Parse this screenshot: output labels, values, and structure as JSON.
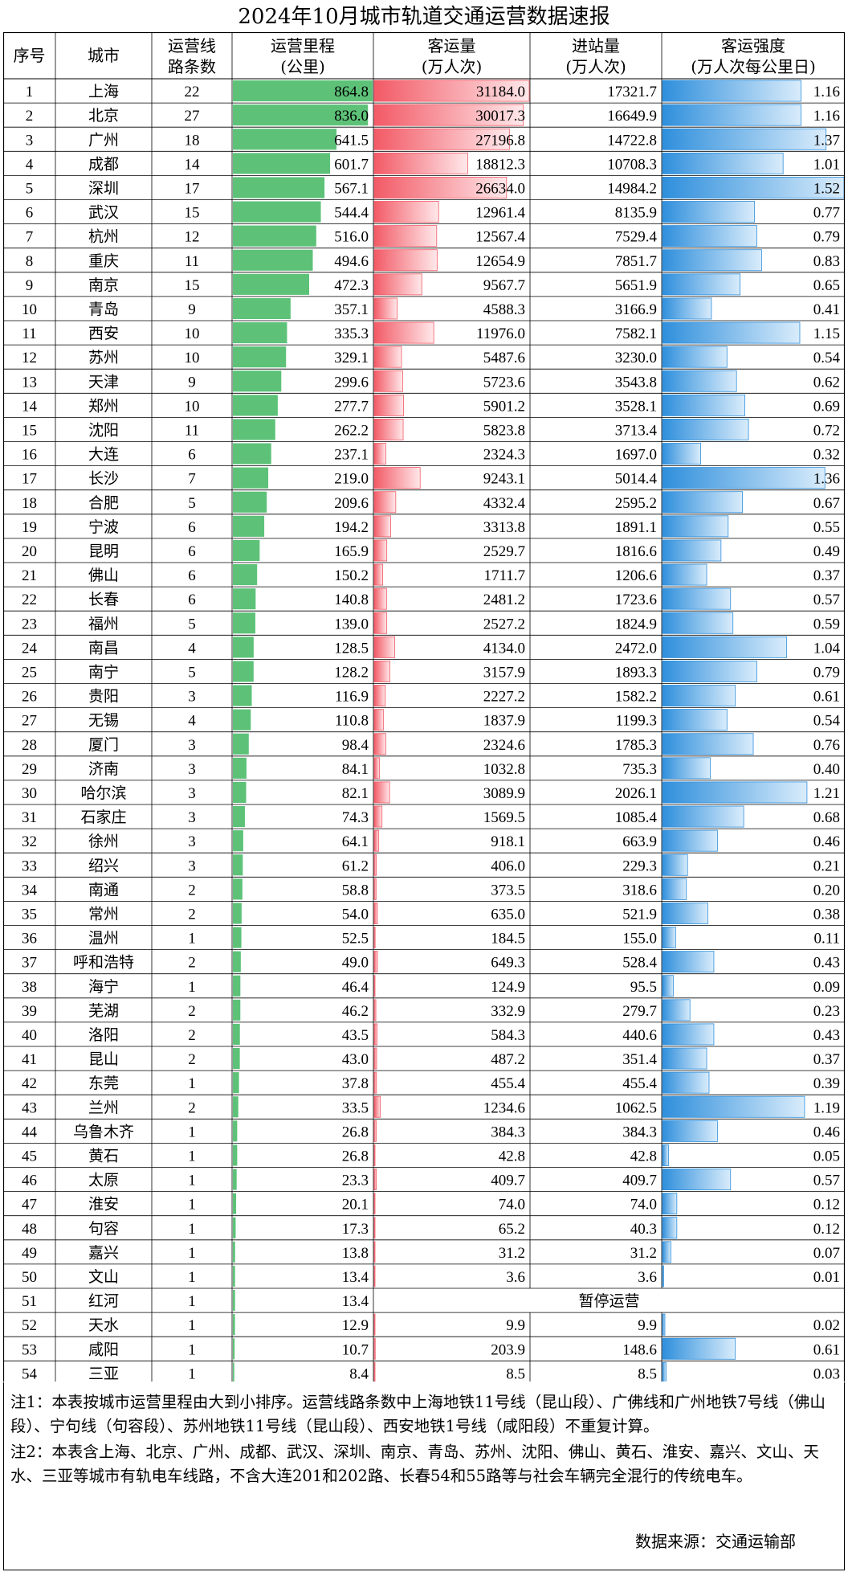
{
  "title": "2024年10月城市轨道交通运营数据速报",
  "headers": {
    "seq": "序号",
    "city": "城市",
    "lines_1": "运营线",
    "lines_2": "路条数",
    "mileage_1": "运营里程",
    "mileage_2": "(公里)",
    "ridership_1": "客运量",
    "ridership_2": "(万人次)",
    "entry_1": "进站量",
    "entry_2": "(万人次)",
    "intensity_1": "客运强度",
    "intensity_2": "(万人次每公里日)"
  },
  "colors": {
    "mileage_bar": "#5dc278",
    "ridership_bar": "#f25a66",
    "intensity_bar": "#2f8fdc",
    "border": "#000000"
  },
  "scales": {
    "mileage_max": 864.8,
    "ridership_max": 31184.0,
    "intensity_max": 1.52
  },
  "suspended_text": "暂停运营",
  "rows": [
    {
      "seq": "1",
      "city": "上海",
      "lines": "22",
      "mileage": "864.8",
      "ridership": "31184.0",
      "entries": "17321.7",
      "intensity": "1.16"
    },
    {
      "seq": "2",
      "city": "北京",
      "lines": "27",
      "mileage": "836.0",
      "ridership": "30017.3",
      "entries": "16649.9",
      "intensity": "1.16"
    },
    {
      "seq": "3",
      "city": "广州",
      "lines": "18",
      "mileage": "641.5",
      "ridership": "27196.8",
      "entries": "14722.8",
      "intensity": "1.37"
    },
    {
      "seq": "4",
      "city": "成都",
      "lines": "14",
      "mileage": "601.7",
      "ridership": "18812.3",
      "entries": "10708.3",
      "intensity": "1.01"
    },
    {
      "seq": "5",
      "city": "深圳",
      "lines": "17",
      "mileage": "567.1",
      "ridership": "26634.0",
      "entries": "14984.2",
      "intensity": "1.52"
    },
    {
      "seq": "6",
      "city": "武汉",
      "lines": "15",
      "mileage": "544.4",
      "ridership": "12961.4",
      "entries": "8135.9",
      "intensity": "0.77"
    },
    {
      "seq": "7",
      "city": "杭州",
      "lines": "12",
      "mileage": "516.0",
      "ridership": "12567.4",
      "entries": "7529.4",
      "intensity": "0.79"
    },
    {
      "seq": "8",
      "city": "重庆",
      "lines": "11",
      "mileage": "494.6",
      "ridership": "12654.9",
      "entries": "7851.7",
      "intensity": "0.83"
    },
    {
      "seq": "9",
      "city": "南京",
      "lines": "15",
      "mileage": "472.3",
      "ridership": "9567.7",
      "entries": "5651.9",
      "intensity": "0.65"
    },
    {
      "seq": "10",
      "city": "青岛",
      "lines": "9",
      "mileage": "357.1",
      "ridership": "4588.3",
      "entries": "3166.9",
      "intensity": "0.41"
    },
    {
      "seq": "11",
      "city": "西安",
      "lines": "10",
      "mileage": "335.3",
      "ridership": "11976.0",
      "entries": "7582.1",
      "intensity": "1.15"
    },
    {
      "seq": "12",
      "city": "苏州",
      "lines": "10",
      "mileage": "329.1",
      "ridership": "5487.6",
      "entries": "3230.0",
      "intensity": "0.54"
    },
    {
      "seq": "13",
      "city": "天津",
      "lines": "9",
      "mileage": "299.6",
      "ridership": "5723.6",
      "entries": "3543.8",
      "intensity": "0.62"
    },
    {
      "seq": "14",
      "city": "郑州",
      "lines": "10",
      "mileage": "277.7",
      "ridership": "5901.2",
      "entries": "3528.1",
      "intensity": "0.69"
    },
    {
      "seq": "15",
      "city": "沈阳",
      "lines": "11",
      "mileage": "262.2",
      "ridership": "5823.8",
      "entries": "3713.4",
      "intensity": "0.72"
    },
    {
      "seq": "16",
      "city": "大连",
      "lines": "6",
      "mileage": "237.1",
      "ridership": "2324.3",
      "entries": "1697.0",
      "intensity": "0.32"
    },
    {
      "seq": "17",
      "city": "长沙",
      "lines": "7",
      "mileage": "219.0",
      "ridership": "9243.1",
      "entries": "5014.4",
      "intensity": "1.36"
    },
    {
      "seq": "18",
      "city": "合肥",
      "lines": "5",
      "mileage": "209.6",
      "ridership": "4332.4",
      "entries": "2595.2",
      "intensity": "0.67"
    },
    {
      "seq": "19",
      "city": "宁波",
      "lines": "6",
      "mileage": "194.2",
      "ridership": "3313.8",
      "entries": "1891.1",
      "intensity": "0.55"
    },
    {
      "seq": "20",
      "city": "昆明",
      "lines": "6",
      "mileage": "165.9",
      "ridership": "2529.7",
      "entries": "1816.6",
      "intensity": "0.49"
    },
    {
      "seq": "21",
      "city": "佛山",
      "lines": "6",
      "mileage": "150.2",
      "ridership": "1711.7",
      "entries": "1206.6",
      "intensity": "0.37"
    },
    {
      "seq": "22",
      "city": "长春",
      "lines": "6",
      "mileage": "140.8",
      "ridership": "2481.2",
      "entries": "1723.6",
      "intensity": "0.57"
    },
    {
      "seq": "23",
      "city": "福州",
      "lines": "5",
      "mileage": "139.0",
      "ridership": "2527.2",
      "entries": "1824.9",
      "intensity": "0.59"
    },
    {
      "seq": "24",
      "city": "南昌",
      "lines": "4",
      "mileage": "128.5",
      "ridership": "4134.0",
      "entries": "2472.0",
      "intensity": "1.04"
    },
    {
      "seq": "25",
      "city": "南宁",
      "lines": "5",
      "mileage": "128.2",
      "ridership": "3157.9",
      "entries": "1893.3",
      "intensity": "0.79"
    },
    {
      "seq": "26",
      "city": "贵阳",
      "lines": "3",
      "mileage": "116.9",
      "ridership": "2227.2",
      "entries": "1582.2",
      "intensity": "0.61"
    },
    {
      "seq": "27",
      "city": "无锡",
      "lines": "4",
      "mileage": "110.8",
      "ridership": "1837.9",
      "entries": "1199.3",
      "intensity": "0.54"
    },
    {
      "seq": "28",
      "city": "厦门",
      "lines": "3",
      "mileage": "98.4",
      "ridership": "2324.6",
      "entries": "1785.3",
      "intensity": "0.76"
    },
    {
      "seq": "29",
      "city": "济南",
      "lines": "3",
      "mileage": "84.1",
      "ridership": "1032.8",
      "entries": "735.3",
      "intensity": "0.40"
    },
    {
      "seq": "30",
      "city": "哈尔滨",
      "lines": "3",
      "mileage": "82.1",
      "ridership": "3089.9",
      "entries": "2026.1",
      "intensity": "1.21"
    },
    {
      "seq": "31",
      "city": "石家庄",
      "lines": "3",
      "mileage": "74.3",
      "ridership": "1569.5",
      "entries": "1085.4",
      "intensity": "0.68"
    },
    {
      "seq": "32",
      "city": "徐州",
      "lines": "3",
      "mileage": "64.1",
      "ridership": "918.1",
      "entries": "663.9",
      "intensity": "0.46"
    },
    {
      "seq": "33",
      "city": "绍兴",
      "lines": "3",
      "mileage": "61.2",
      "ridership": "406.0",
      "entries": "229.3",
      "intensity": "0.21"
    },
    {
      "seq": "34",
      "city": "南通",
      "lines": "2",
      "mileage": "58.8",
      "ridership": "373.5",
      "entries": "318.6",
      "intensity": "0.20"
    },
    {
      "seq": "35",
      "city": "常州",
      "lines": "2",
      "mileage": "54.0",
      "ridership": "635.0",
      "entries": "521.9",
      "intensity": "0.38"
    },
    {
      "seq": "36",
      "city": "温州",
      "lines": "1",
      "mileage": "52.5",
      "ridership": "184.5",
      "entries": "155.0",
      "intensity": "0.11"
    },
    {
      "seq": "37",
      "city": "呼和浩特",
      "lines": "2",
      "mileage": "49.0",
      "ridership": "649.3",
      "entries": "528.4",
      "intensity": "0.43"
    },
    {
      "seq": "38",
      "city": "海宁",
      "lines": "1",
      "mileage": "46.4",
      "ridership": "124.9",
      "entries": "95.5",
      "intensity": "0.09"
    },
    {
      "seq": "39",
      "city": "芜湖",
      "lines": "2",
      "mileage": "46.2",
      "ridership": "332.9",
      "entries": "279.7",
      "intensity": "0.23"
    },
    {
      "seq": "40",
      "city": "洛阳",
      "lines": "2",
      "mileage": "43.5",
      "ridership": "584.3",
      "entries": "440.6",
      "intensity": "0.43"
    },
    {
      "seq": "41",
      "city": "昆山",
      "lines": "2",
      "mileage": "43.0",
      "ridership": "487.2",
      "entries": "351.4",
      "intensity": "0.37"
    },
    {
      "seq": "42",
      "city": "东莞",
      "lines": "1",
      "mileage": "37.8",
      "ridership": "455.4",
      "entries": "455.4",
      "intensity": "0.39"
    },
    {
      "seq": "43",
      "city": "兰州",
      "lines": "2",
      "mileage": "33.5",
      "ridership": "1234.6",
      "entries": "1062.5",
      "intensity": "1.19"
    },
    {
      "seq": "44",
      "city": "乌鲁木齐",
      "lines": "1",
      "mileage": "26.8",
      "ridership": "384.3",
      "entries": "384.3",
      "intensity": "0.46"
    },
    {
      "seq": "45",
      "city": "黄石",
      "lines": "1",
      "mileage": "26.8",
      "ridership": "42.8",
      "entries": "42.8",
      "intensity": "0.05"
    },
    {
      "seq": "46",
      "city": "太原",
      "lines": "1",
      "mileage": "23.3",
      "ridership": "409.7",
      "entries": "409.7",
      "intensity": "0.57"
    },
    {
      "seq": "47",
      "city": "淮安",
      "lines": "1",
      "mileage": "20.1",
      "ridership": "74.0",
      "entries": "74.0",
      "intensity": "0.12"
    },
    {
      "seq": "48",
      "city": "句容",
      "lines": "1",
      "mileage": "17.3",
      "ridership": "65.2",
      "entries": "40.3",
      "intensity": "0.12"
    },
    {
      "seq": "49",
      "city": "嘉兴",
      "lines": "1",
      "mileage": "13.8",
      "ridership": "31.2",
      "entries": "31.2",
      "intensity": "0.07"
    },
    {
      "seq": "50",
      "city": "文山",
      "lines": "1",
      "mileage": "13.4",
      "ridership": "3.6",
      "entries": "3.6",
      "intensity": "0.01"
    },
    {
      "seq": "51",
      "city": "红河",
      "lines": "1",
      "mileage": "13.4",
      "suspended": true
    },
    {
      "seq": "52",
      "city": "天水",
      "lines": "1",
      "mileage": "12.9",
      "ridership": "9.9",
      "entries": "9.9",
      "intensity": "0.02"
    },
    {
      "seq": "53",
      "city": "咸阳",
      "lines": "1",
      "mileage": "10.7",
      "ridership": "203.9",
      "entries": "148.6",
      "intensity": "0.61"
    },
    {
      "seq": "54",
      "city": "三亚",
      "lines": "1",
      "mileage": "8.4",
      "ridership": "8.5",
      "entries": "8.5",
      "intensity": "0.03"
    }
  ],
  "notes": {
    "note1": "注1：本表按城市运营里程由大到小排序。运营线路条数中上海地铁11号线（昆山段）、广佛线和广州地铁7号线（佛山段）、宁句线（句容段）、苏州地铁11号线（昆山段）、西安地铁1号线（咸阳段）不重复计算。",
    "note2": "注2：本表含上海、北京、广州、成都、武汉、深圳、南京、青岛、苏州、沈阳、佛山、黄石、淮安、嘉兴、文山、天水、三亚等城市有轨电车线路，不含大连201和202路、长春54和55路等与社会车辆完全混行的传统电车。",
    "source": "数据来源：交通运输部"
  }
}
